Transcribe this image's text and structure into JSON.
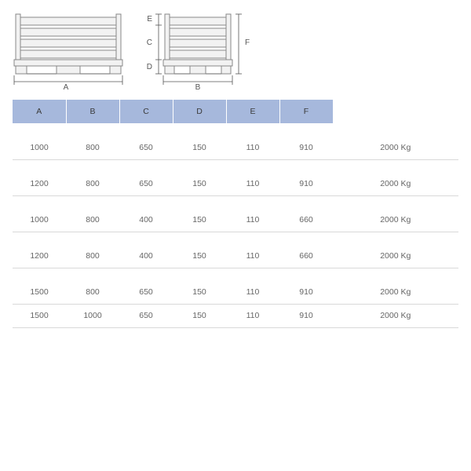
{
  "diagram": {
    "labels": {
      "A": "A",
      "B": "B",
      "C": "C",
      "D": "D",
      "E": "E",
      "F": "F"
    },
    "colors": {
      "outline": "#888888",
      "fill": "#f2f2f2",
      "dim": "#555555"
    }
  },
  "table": {
    "header_bg": "#a6b8dc",
    "border_color": "#d9d9d9",
    "columns": [
      "A",
      "B",
      "C",
      "D",
      "E",
      "F"
    ],
    "groups": [
      [
        {
          "A": "1000",
          "B": "800",
          "C": "650",
          "D": "150",
          "E": "110",
          "F": "910",
          "W": "2000 Kg"
        }
      ],
      [
        {
          "A": "1200",
          "B": "800",
          "C": "650",
          "D": "150",
          "E": "110",
          "F": "910",
          "W": "2000 Kg"
        }
      ],
      [
        {
          "A": "1000",
          "B": "800",
          "C": "400",
          "D": "150",
          "E": "110",
          "F": "660",
          "W": "2000 Kg"
        }
      ],
      [
        {
          "A": "1200",
          "B": "800",
          "C": "400",
          "D": "150",
          "E": "110",
          "F": "660",
          "W": "2000 Kg"
        }
      ],
      [
        {
          "A": "1500",
          "B": "800",
          "C": "650",
          "D": "150",
          "E": "110",
          "F": "910",
          "W": "2000 Kg"
        },
        {
          "A": "1500",
          "B": "1000",
          "C": "650",
          "D": "150",
          "E": "110",
          "F": "910",
          "W": "2000 Kg"
        }
      ]
    ]
  }
}
